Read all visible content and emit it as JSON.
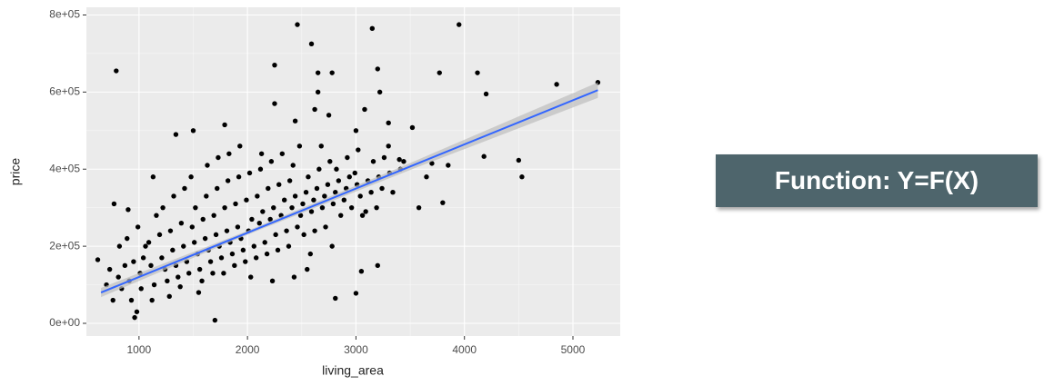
{
  "chart_data": {
    "type": "scatter",
    "x_label": "living_area",
    "y_label": "price",
    "xlim": [
      515,
      5436
    ],
    "ylim": [
      -33000,
      820000
    ],
    "xticks": [
      1000,
      2000,
      3000,
      4000,
      5000
    ],
    "yticks": [
      {
        "value": 0,
        "label": "0e+00"
      },
      {
        "value": 200000,
        "label": "2e+05"
      },
      {
        "value": 400000,
        "label": "4e+05"
      },
      {
        "value": 600000,
        "label": "6e+05"
      },
      {
        "value": 800000,
        "label": "8e+05"
      }
    ],
    "x_minor_ticks": [
      1500,
      2500,
      3500,
      4500
    ],
    "y_minor_ticks": [
      100000,
      300000,
      500000,
      700000
    ],
    "grid": true,
    "color": "#000000",
    "x": [
      790,
      2460,
      2590,
      3150,
      3950,
      2250,
      2650,
      2780,
      3200,
      3770,
      4120,
      4200,
      4850,
      5230,
      2650,
      3220,
      2620,
      2750,
      3080,
      3300,
      3520,
      1790,
      1500,
      1340,
      2440,
      3000,
      3580,
      3800,
      3850,
      4180,
      4500,
      4530,
      3000,
      2810,
      1700,
      960,
      1130,
      770,
      620,
      900,
      2550,
      3050,
      3200,
      3400,
      3300,
      3650,
      3700,
      2250,
      700,
      730,
      760,
      810,
      840,
      870,
      820,
      910,
      950,
      930,
      890,
      980,
      1010,
      1040,
      1020,
      990,
      1060,
      1110,
      1140,
      1090,
      1160,
      1120,
      1210,
      1240,
      1190,
      1260,
      1220,
      1310,
      1340,
      1290,
      1360,
      1320,
      1280,
      1410,
      1440,
      1390,
      1460,
      1420,
      1380,
      1510,
      1540,
      1490,
      1560,
      1520,
      1480,
      1550,
      1610,
      1640,
      1590,
      1660,
      1620,
      1580,
      1630,
      1710,
      1740,
      1690,
      1760,
      1720,
      1680,
      1730,
      1810,
      1840,
      1790,
      1860,
      1820,
      1780,
      1830,
      1910,
      1940,
      1890,
      1960,
      1920,
      1880,
      1930,
      2010,
      2040,
      1990,
      2060,
      2020,
      1980,
      2030,
      2110,
      2140,
      2090,
      2160,
      2120,
      2080,
      2130,
      2210,
      2240,
      2190,
      2260,
      2220,
      2180,
      2230,
      2310,
      2340,
      2290,
      2360,
      2320,
      2280,
      2410,
      2440,
      2390,
      2460,
      2420,
      2380,
      2430,
      2510,
      2540,
      2490,
      2560,
      2520,
      2480,
      2610,
      2640,
      2590,
      2660,
      2620,
      2580,
      2710,
      2740,
      2690,
      2760,
      2720,
      2680,
      2810,
      2840,
      2790,
      2860,
      2820,
      2780,
      2910,
      2940,
      2890,
      2960,
      2920,
      3010,
      3040,
      2990,
      3060,
      3020,
      3110,
      3140,
      3090,
      3160,
      3210,
      3240,
      3190,
      3260,
      3310,
      3340,
      3410,
      3440
    ],
    "values": [
      655000,
      775000,
      725000,
      765000,
      775000,
      670000,
      650000,
      650000,
      660000,
      650000,
      650000,
      595000,
      620000,
      625000,
      600000,
      600000,
      555000,
      540000,
      555000,
      520000,
      508000,
      515000,
      500000,
      490000,
      525000,
      500000,
      300000,
      313000,
      410000,
      433000,
      423000,
      380000,
      78000,
      65000,
      8000,
      15000,
      380000,
      310000,
      165000,
      295000,
      140000,
      135000,
      150000,
      425000,
      460000,
      380000,
      415000,
      570000,
      100000,
      140000,
      60000,
      120000,
      90000,
      150000,
      200000,
      110000,
      160000,
      60000,
      220000,
      30000,
      130000,
      170000,
      90000,
      250000,
      200000,
      150000,
      100000,
      210000,
      280000,
      60000,
      170000,
      140000,
      230000,
      110000,
      300000,
      190000,
      150000,
      240000,
      120000,
      330000,
      70000,
      200000,
      160000,
      260000,
      130000,
      350000,
      95000,
      210000,
      180000,
      250000,
      140000,
      300000,
      380000,
      80000,
      220000,
      190000,
      270000,
      160000,
      330000,
      110000,
      410000,
      230000,
      200000,
      280000,
      170000,
      350000,
      130000,
      430000,
      240000,
      210000,
      300000,
      180000,
      370000,
      130000,
      440000,
      250000,
      220000,
      310000,
      190000,
      380000,
      150000,
      460000,
      240000,
      270000,
      320000,
      200000,
      390000,
      160000,
      120000,
      260000,
      290000,
      330000,
      210000,
      400000,
      170000,
      440000,
      270000,
      300000,
      350000,
      230000,
      420000,
      180000,
      110000,
      280000,
      320000,
      360000,
      240000,
      440000,
      190000,
      300000,
      330000,
      370000,
      250000,
      410000,
      200000,
      120000,
      310000,
      340000,
      280000,
      380000,
      230000,
      460000,
      320000,
      350000,
      290000,
      400000,
      240000,
      180000,
      330000,
      360000,
      300000,
      420000,
      250000,
      460000,
      340000,
      370000,
      310000,
      280000,
      400000,
      200000,
      350000,
      380000,
      320000,
      300000,
      430000,
      360000,
      330000,
      390000,
      280000,
      450000,
      370000,
      340000,
      290000,
      420000,
      380000,
      350000,
      300000,
      430000,
      390000,
      340000,
      400000,
      420000
    ],
    "fit": {
      "color": "#3366ff",
      "band_color": "#bebebe",
      "x": [
        650,
        2000,
        3500,
        5230
      ],
      "values": [
        80000,
        235000,
        407000,
        605000
      ],
      "lower": [
        68000,
        230000,
        398000,
        585000
      ],
      "upper": [
        92000,
        240000,
        416000,
        625000
      ]
    }
  },
  "callout": {
    "text": "Function: Y=F(X)"
  }
}
